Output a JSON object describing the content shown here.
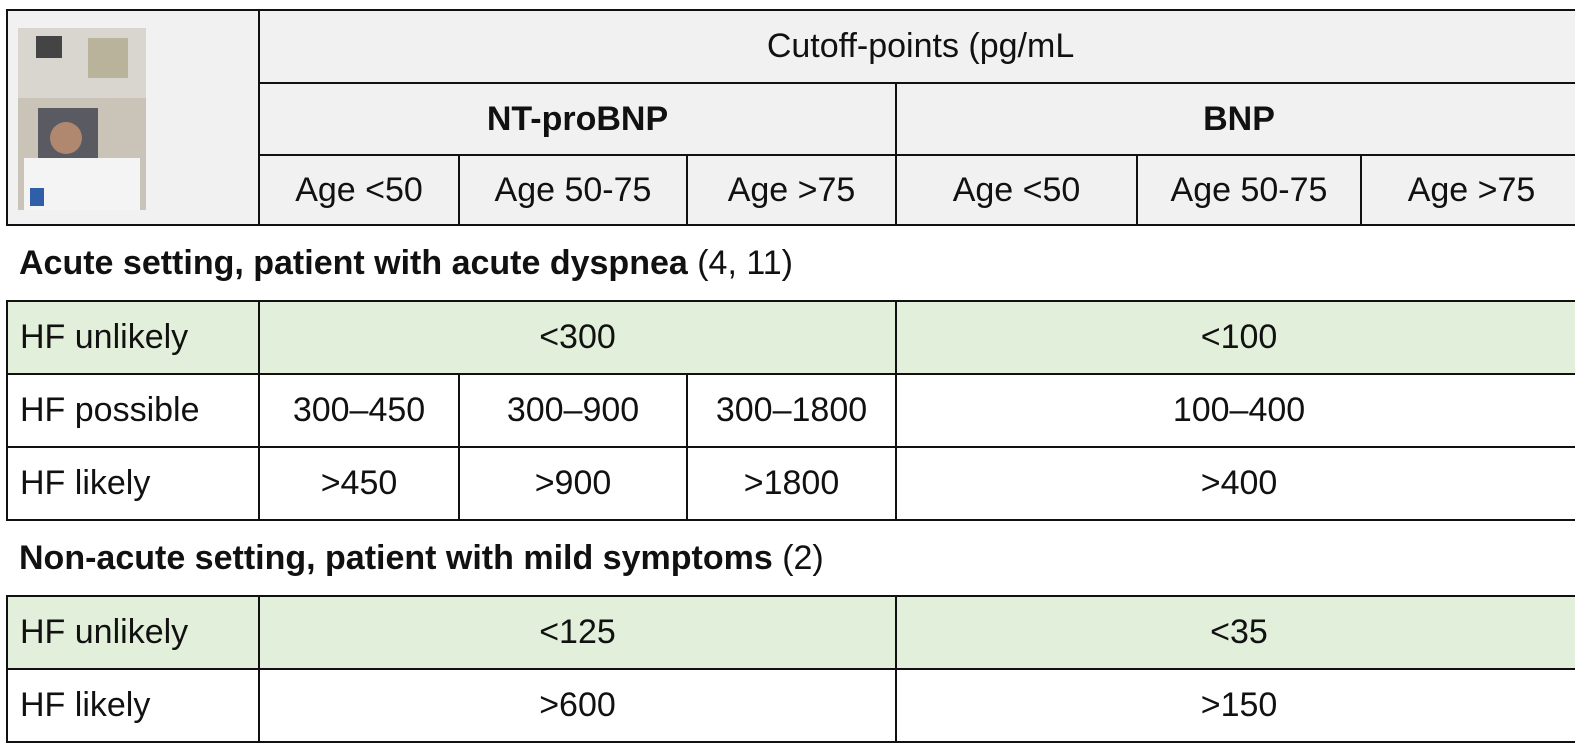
{
  "header": {
    "group": "Cutoff-points (pg/mL",
    "markers": [
      "NT-proBNP",
      "BNP"
    ],
    "ages": [
      "Age <50",
      "Age 50-75",
      "Age >75",
      "Age <50",
      "Age 50-75",
      "Age >75"
    ]
  },
  "sections": [
    {
      "title": "Acute setting, patient with acute dyspnea",
      "ref": "(4, 11)",
      "rows": [
        {
          "label": "HF unlikely",
          "cells": [
            "<300",
            "<100"
          ]
        },
        {
          "label": "HF possible",
          "cells": [
            "300–450",
            "300–900",
            "300–1800",
            "100–400"
          ]
        },
        {
          "label": "HF likely",
          "cells": [
            ">450",
            ">900",
            ">1800",
            ">400"
          ]
        }
      ]
    },
    {
      "title": "Non-acute setting, patient with mild symptoms",
      "ref": "(2)",
      "rows": [
        {
          "label": "HF unlikely",
          "cells": [
            "<125",
            "<35"
          ]
        },
        {
          "label": "HF likely",
          "cells": [
            ">600",
            ">150"
          ]
        }
      ]
    }
  ]
}
